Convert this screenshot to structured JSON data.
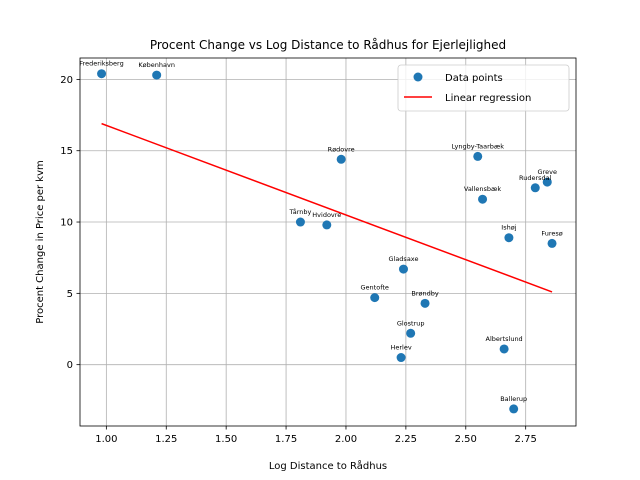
{
  "chart_data": {
    "type": "scatter",
    "title": "Procent Change vs Log Distance to Rådhus for Ejerlejlighed",
    "xlabel": "Log Distance to Rådhus",
    "ylabel": "Procent Change in Price per kvm",
    "xlim": [
      0.89,
      2.96
    ],
    "ylim": [
      -4.3,
      21.5
    ],
    "xticks": [
      1.0,
      1.25,
      1.5,
      1.75,
      2.0,
      2.25,
      2.5,
      2.75
    ],
    "xtick_labels": [
      "1.00",
      "1.25",
      "1.50",
      "1.75",
      "2.00",
      "2.25",
      "2.50",
      "2.75"
    ],
    "yticks": [
      0,
      5,
      10,
      15,
      20
    ],
    "ytick_labels": [
      "0",
      "5",
      "10",
      "15",
      "20"
    ],
    "grid": true,
    "legend_position": "top-right",
    "series": [
      {
        "name": "Data points",
        "color": "#1f77b4",
        "points": [
          {
            "label": "Frederiksberg",
            "x": 0.98,
            "y": 20.4
          },
          {
            "label": "København",
            "x": 1.21,
            "y": 20.3
          },
          {
            "label": "Rødovre",
            "x": 1.98,
            "y": 14.4
          },
          {
            "label": "Tårnby",
            "x": 1.81,
            "y": 10.0
          },
          {
            "label": "Hvidovre",
            "x": 1.92,
            "y": 9.8
          },
          {
            "label": "Gladsaxe",
            "x": 2.24,
            "y": 6.7
          },
          {
            "label": "Gentofte",
            "x": 2.12,
            "y": 4.7
          },
          {
            "label": "Brøndby",
            "x": 2.33,
            "y": 4.3
          },
          {
            "label": "Glostrup",
            "x": 2.27,
            "y": 2.2
          },
          {
            "label": "Herlev",
            "x": 2.23,
            "y": 0.5
          },
          {
            "label": "Lyngby-Taarbæk",
            "x": 2.55,
            "y": 14.6
          },
          {
            "label": "Vallensbæk",
            "x": 2.57,
            "y": 11.6
          },
          {
            "label": "Rudersdal",
            "x": 2.79,
            "y": 12.4
          },
          {
            "label": "Greve",
            "x": 2.84,
            "y": 12.8
          },
          {
            "label": "Ishøj",
            "x": 2.68,
            "y": 8.9
          },
          {
            "label": "Furesø",
            "x": 2.86,
            "y": 8.5
          },
          {
            "label": "Albertslund",
            "x": 2.66,
            "y": 1.1
          },
          {
            "label": "Ballerup",
            "x": 2.7,
            "y": -3.1
          }
        ]
      },
      {
        "name": "Linear regression",
        "color": "#ff0000",
        "line": [
          {
            "x": 0.98,
            "y": 16.9
          },
          {
            "x": 2.86,
            "y": 5.1
          }
        ]
      }
    ]
  }
}
